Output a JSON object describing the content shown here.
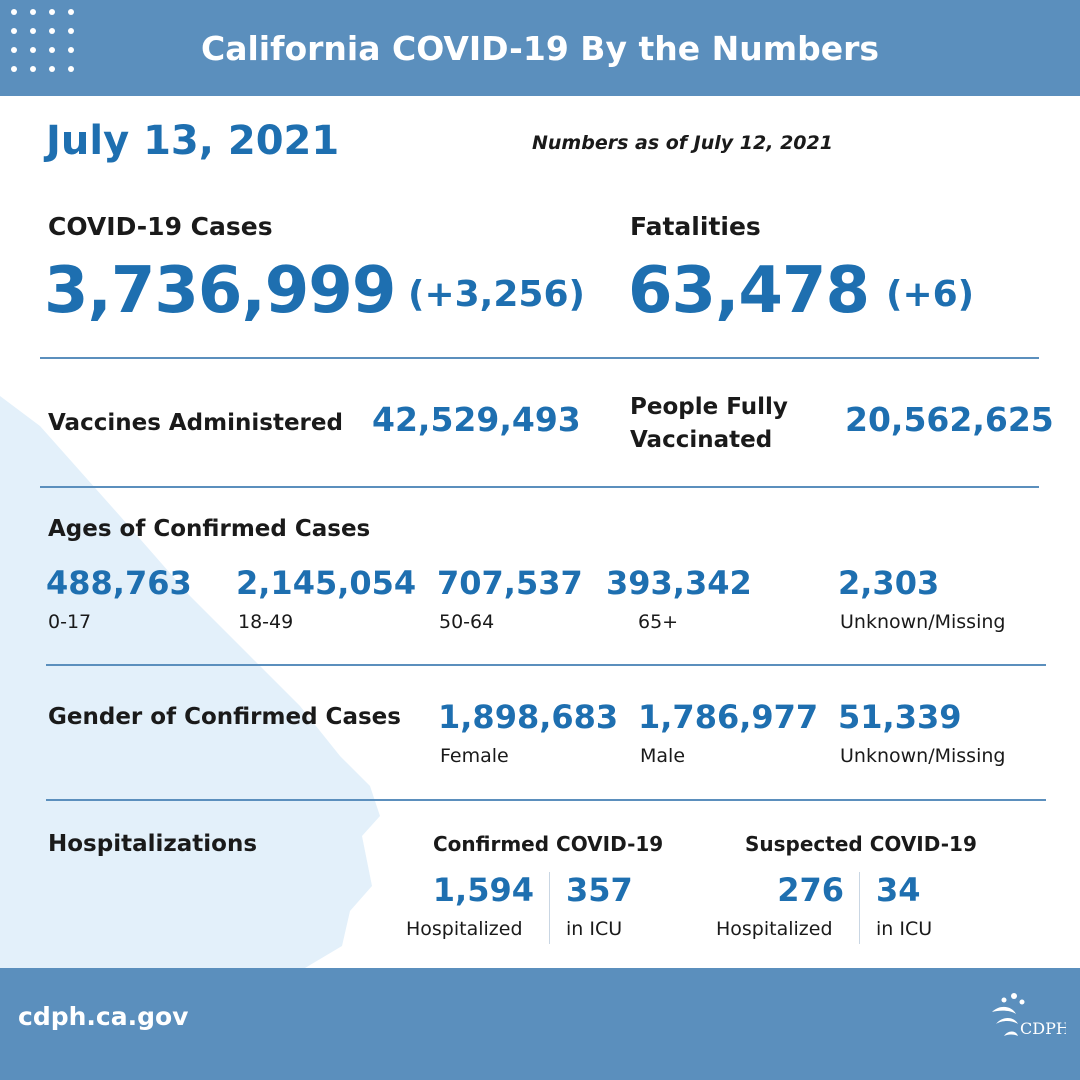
{
  "header": {
    "title": "California COVID-19 By the Numbers"
  },
  "date": "July 13, 2021",
  "as_of": "Numbers as of July 12, 2021",
  "cases": {
    "label": "COVID-19 Cases",
    "value": "3,736,999",
    "change": "(+3,256)"
  },
  "fatalities": {
    "label": "Fatalities",
    "value": "63,478",
    "change": "(+6)"
  },
  "vaccines": {
    "label": "Vaccines Administered",
    "value": "42,529,493"
  },
  "fully_vaccinated": {
    "label_line1": "People Fully",
    "label_line2": "Vaccinated",
    "value": "20,562,625"
  },
  "ages": {
    "title": "Ages of Confirmed Cases",
    "groups": [
      {
        "value": "488,763",
        "label": "0-17"
      },
      {
        "value": "2,145,054",
        "label": "18-49"
      },
      {
        "value": "707,537",
        "label": "50-64"
      },
      {
        "value": "393,342",
        "label": "65+"
      },
      {
        "value": "2,303",
        "label": "Unknown/Missing"
      }
    ]
  },
  "gender": {
    "title": "Gender of Confirmed Cases",
    "groups": [
      {
        "value": "1,898,683",
        "label": "Female"
      },
      {
        "value": "1,786,977",
        "label": "Male"
      },
      {
        "value": "51,339",
        "label": "Unknown/Missing"
      }
    ]
  },
  "hospitalizations": {
    "title": "Hospitalizations",
    "confirmed": {
      "title": "Confirmed COVID-19",
      "hospitalized": "1,594",
      "hospitalized_label": "Hospitalized",
      "icu": "357",
      "icu_label": "in ICU"
    },
    "suspected": {
      "title": "Suspected COVID-19",
      "hospitalized": "276",
      "hospitalized_label": "Hospitalized",
      "icu": "34",
      "icu_label": "in ICU"
    }
  },
  "footer": {
    "url": "cdph.ca.gov",
    "logo_icon": "cdph-logo-icon"
  },
  "colors": {
    "header_bg": "#5b8fbd",
    "accent_blue": "#1e6fb0",
    "map_bg": "#e3f0fa"
  }
}
